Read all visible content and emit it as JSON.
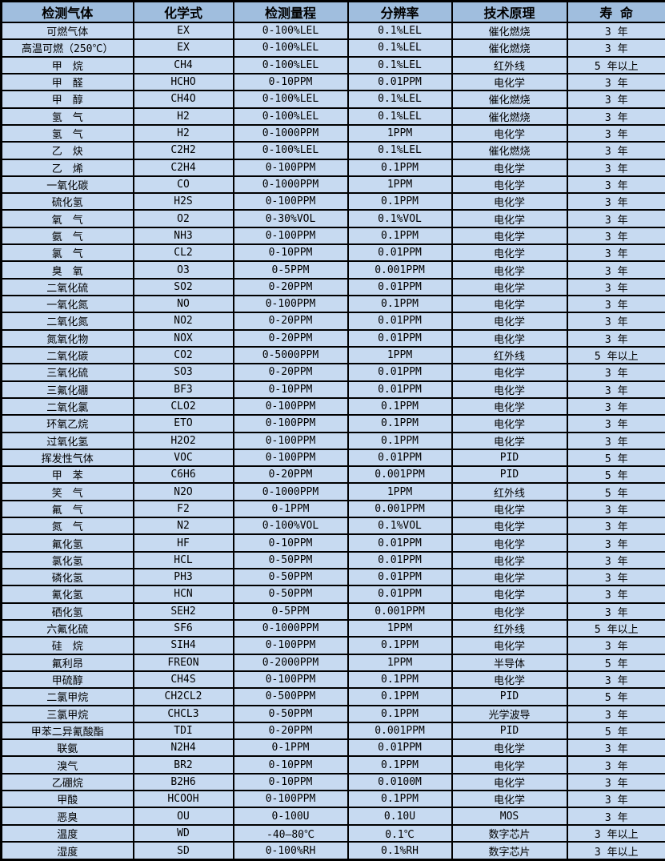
{
  "table": {
    "columns": [
      {
        "key": "gas",
        "label": "检测气体"
      },
      {
        "key": "formula",
        "label": "化学式"
      },
      {
        "key": "range",
        "label": "检测量程"
      },
      {
        "key": "resolution",
        "label": "分辨率"
      },
      {
        "key": "principle",
        "label": "技术原理"
      },
      {
        "key": "lifespan",
        "label": "寿 命"
      }
    ],
    "rows": [
      [
        "可燃气体",
        "EX",
        "0-100%LEL",
        "0.1%LEL",
        "催化燃烧",
        "3 年"
      ],
      [
        "高温可燃（250℃）",
        "EX",
        "0-100%LEL",
        "0.1%LEL",
        "催化燃烧",
        "3 年"
      ],
      [
        "甲　烷",
        "CH4",
        "0-100%LEL",
        "0.1%LEL",
        "红外线",
        "5 年以上"
      ],
      [
        "甲　醛",
        "HCHO",
        "0-10PPM",
        "0.01PPM",
        "电化学",
        "3 年"
      ],
      [
        "甲　醇",
        "CH4O",
        "0-100%LEL",
        "0.1%LEL",
        "催化燃烧",
        "3 年"
      ],
      [
        "氢　气",
        "H2",
        "0-100%LEL",
        "0.1%LEL",
        "催化燃烧",
        "3 年"
      ],
      [
        "氢　气",
        "H2",
        "0-1000PPM",
        "1PPM",
        "电化学",
        "3 年"
      ],
      [
        "乙　炔",
        "C2H2",
        "0-100%LEL",
        "0.1%LEL",
        "催化燃烧",
        "3 年"
      ],
      [
        "乙　烯",
        "C2H4",
        "0-100PPM",
        "0.1PPM",
        "电化学",
        "3 年"
      ],
      [
        "一氧化碳",
        "CO",
        "0-1000PPM",
        "1PPM",
        "电化学",
        "3 年"
      ],
      [
        "硫化氢",
        "H2S",
        "0-100PPM",
        "0.1PPM",
        "电化学",
        "3 年"
      ],
      [
        "氧　气",
        "O2",
        "0-30%VOL",
        "0.1%VOL",
        "电化学",
        "3 年"
      ],
      [
        "氨　气",
        "NH3",
        "0-100PPM",
        "0.1PPM",
        "电化学",
        "3 年"
      ],
      [
        "氯　气",
        "CL2",
        "0-10PPM",
        "0.01PPM",
        "电化学",
        "3 年"
      ],
      [
        "臭　氧",
        "O3",
        "0-5PPM",
        "0.001PPM",
        "电化学",
        "3 年"
      ],
      [
        "二氧化硫",
        "SO2",
        "0-20PPM",
        "0.01PPM",
        "电化学",
        "3 年"
      ],
      [
        "一氧化氮",
        "NO",
        "0-100PPM",
        "0.1PPM",
        "电化学",
        "3 年"
      ],
      [
        "二氧化氮",
        "NO2",
        "0-20PPM",
        "0.01PPM",
        "电化学",
        "3 年"
      ],
      [
        "氮氧化物",
        "NOX",
        "0-20PPM",
        "0.01PPM",
        "电化学",
        "3 年"
      ],
      [
        "二氧化碳",
        "CO2",
        "0-5000PPM",
        "1PPM",
        "红外线",
        "5 年以上"
      ],
      [
        "三氧化硫",
        "SO3",
        "0-20PPM",
        "0.01PPM",
        "电化学",
        "3 年"
      ],
      [
        "三氟化硼",
        "BF3",
        "0-10PPM",
        "0.01PPM",
        "电化学",
        "3 年"
      ],
      [
        "二氧化氯",
        "CLO2",
        "0-100PPM",
        "0.1PPM",
        "电化学",
        "3 年"
      ],
      [
        "环氧乙烷",
        "ETO",
        "0-100PPM",
        "0.1PPM",
        "电化学",
        "3 年"
      ],
      [
        "过氧化氢",
        "H2O2",
        "0-100PPM",
        "0.1PPM",
        "电化学",
        "3 年"
      ],
      [
        "挥发性气体",
        "VOC",
        "0-100PPM",
        "0.01PPM",
        "PID",
        "5 年"
      ],
      [
        "甲　苯",
        "C6H6",
        "0-20PPM",
        "0.001PPM",
        "PID",
        "5 年"
      ],
      [
        "笑　气",
        "N2O",
        "0-1000PPM",
        "1PPM",
        "红外线",
        "5 年"
      ],
      [
        "氟　气",
        "F2",
        "0-1PPM",
        "0.001PPM",
        "电化学",
        "3 年"
      ],
      [
        "氮　气",
        "N2",
        "0-100%VOL",
        "0.1%VOL",
        "电化学",
        "3 年"
      ],
      [
        "氟化氢",
        "HF",
        "0-10PPM",
        "0.01PPM",
        "电化学",
        "3 年"
      ],
      [
        "氯化氢",
        "HCL",
        "0-50PPM",
        "0.01PPM",
        "电化学",
        "3 年"
      ],
      [
        "磷化氢",
        "PH3",
        "0-50PPM",
        "0.01PPM",
        "电化学",
        "3 年"
      ],
      [
        "氰化氢",
        "HCN",
        "0-50PPM",
        "0.01PPM",
        "电化学",
        "3 年"
      ],
      [
        "硒化氢",
        "SEH2",
        "0-5PPM",
        "0.001PPM",
        "电化学",
        "3 年"
      ],
      [
        "六氟化硫",
        "SF6",
        "0-1000PPM",
        "1PPM",
        "红外线",
        "5 年以上"
      ],
      [
        "硅　烷",
        "SIH4",
        "0-100PPM",
        "0.1PPM",
        "电化学",
        "3 年"
      ],
      [
        "氟利昂",
        "FREON",
        "0-2000PPM",
        "1PPM",
        "半导体",
        "5 年"
      ],
      [
        "甲硫醇",
        "CH4S",
        "0-100PPM",
        "0.1PPM",
        "电化学",
        "3 年"
      ],
      [
        "二氯甲烷",
        "CH2CL2",
        "0-500PPM",
        "0.1PPM",
        "PID",
        "5 年"
      ],
      [
        "三氯甲烷",
        "CHCL3",
        "0-50PPM",
        "0.1PPM",
        "光学波导",
        "3 年"
      ],
      [
        "甲苯二异氰酸酯",
        "TDI",
        "0-20PPM",
        "0.001PPM",
        "PID",
        "5 年"
      ],
      [
        "联氨",
        "N2H4",
        "0-1PPM",
        "0.01PPM",
        "电化学",
        "3 年"
      ],
      [
        "溴气",
        "BR2",
        "0-10PPM",
        "0.1PPM",
        "电化学",
        "3 年"
      ],
      [
        "乙硼烷",
        "B2H6",
        "0-10PPM",
        "0.0100M",
        "电化学",
        "3 年"
      ],
      [
        "甲酸",
        "HCOOH",
        "0-100PPM",
        "0.1PPM",
        "电化学",
        "3 年"
      ],
      [
        "恶臭",
        "OU",
        "0-100U",
        "0.10U",
        "MOS",
        "3 年"
      ],
      [
        "温度",
        "WD",
        "-40—80℃",
        "0.1℃",
        "数字芯片",
        "3 年以上"
      ],
      [
        "湿度",
        "SD",
        "0-100%RH",
        "0.1%RH",
        "数字芯片",
        "3 年以上"
      ]
    ]
  },
  "colors": {
    "header_bg": "#a0bede",
    "row_bg": "#c7daf1",
    "border": "#000000",
    "text": "#000000"
  }
}
